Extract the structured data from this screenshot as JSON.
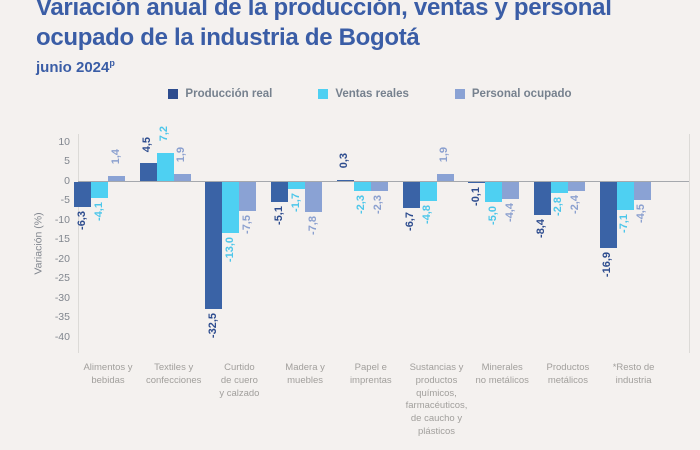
{
  "page": {
    "background": "#f4f1ef"
  },
  "header": {
    "title": "Variación anual de la producción, ventas y personal ocupado de la industria de Bogotá",
    "title_color": "#3a5da6",
    "subtitle": "junio 2024",
    "subtitle_superscript": "p"
  },
  "chart_data": {
    "type": "bar",
    "title": "Variación anual de la producción, ventas y personal ocupado de la industria de Bogotá",
    "subtitle": "junio 2024 (p)",
    "ylabel": "Variación (%)",
    "xlabel": "",
    "ylim": [
      -40,
      10
    ],
    "yticks": [
      10,
      5,
      0,
      -5,
      -10,
      -15,
      -20,
      -25,
      -30,
      -35,
      -40
    ],
    "grid": false,
    "legend_position": "top",
    "value_label_rotation": 90,
    "categories": [
      "Alimentos y\nbebidas",
      "Textiles y\nconfecciones",
      "Curtido\nde cuero\ny calzado",
      "Madera y\nmuebles",
      "Papel e\nimprentas",
      "Sustancias y\nproductos\nquímicos,\nfarmacéuticos,\nde caucho y\nplásticos",
      "Minerales\nno metálicos",
      "Productos\nmetálicos",
      "*Resto de\nindustria"
    ],
    "series": [
      {
        "name": "Producción real",
        "color": "#3a63a6",
        "label_color": "#2d4c8e",
        "values": [
          -6.3,
          4.5,
          -32.5,
          -5.1,
          0.3,
          -6.7,
          -0.1,
          -8.4,
          -16.9
        ],
        "labels": [
          "-6,3",
          "4,5",
          "-32,5",
          "-5,1",
          "0,3",
          "-6,7",
          "-0,1",
          "-8,4",
          "-16,9"
        ]
      },
      {
        "name": "Ventas reales",
        "color": "#4ed0f2",
        "label_color": "#4cc6ea",
        "values": [
          -4.1,
          7.2,
          -13.0,
          -1.7,
          -2.3,
          -4.8,
          -5.0,
          -2.8,
          -7.1
        ],
        "labels": [
          "-4,1",
          "7,2",
          "-13,0",
          "-1,7",
          "-2,3",
          "-4,8",
          "-5,0",
          "-2,8",
          "-7,1"
        ]
      },
      {
        "name": "Personal ocupado",
        "color": "#8aa2d4",
        "label_color": "#8ba0cf",
        "values": [
          1.4,
          1.9,
          -7.5,
          -7.8,
          -2.3,
          1.9,
          -4.4,
          -2.4,
          -4.5
        ],
        "labels": [
          "1,4",
          "1,9",
          "-7,5",
          "-7,8",
          "-2,3",
          "1,9",
          "-4,4",
          "-2,4",
          "-4,5"
        ]
      }
    ],
    "axis_colors": {
      "tick_color": "#81868e",
      "category_color": "#a19f9c",
      "zero_line_color": "#a5a8ad",
      "plot_border_color": "#dcdad7"
    }
  }
}
